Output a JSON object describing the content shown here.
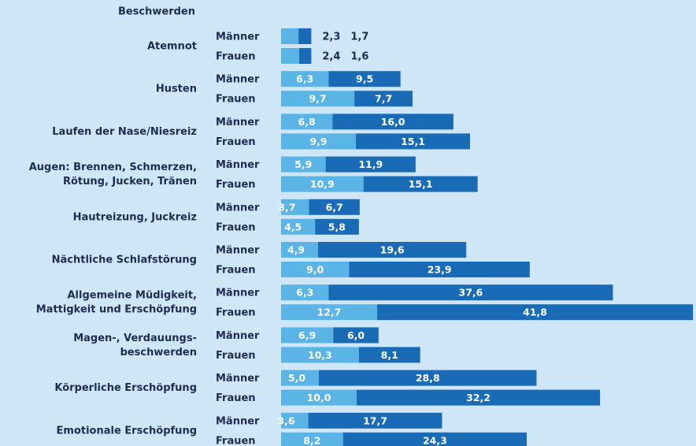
{
  "chart_data": {
    "type": "bar",
    "stacked": true,
    "title": "Beschwerden",
    "categories": [
      "Atemnot",
      "Husten",
      "Laufen der Nase/Niesreiz",
      "Augen: Brennen, Schmerzen,\nRötung, Jucken, Tränen",
      "Hautreizung, Juckreiz",
      "Nächtliche Schlafstörung",
      "Allgemeine Müdigkeit,\nMattigkeit und Erschöpfung",
      "Magen-, Verdauungs-\nbeschwerden",
      "Körperliche Erschöpfung",
      "Emotionale Erschöpfung"
    ],
    "rows": [
      {
        "name": "Männer",
        "series": [
          {
            "color": "#5ab4e5",
            "values": [
              2.3,
              6.3,
              6.8,
              5.9,
              3.7,
              4.9,
              6.3,
              6.9,
              5.0,
              3.6
            ],
            "value_labels": [
              "2,3",
              "6,3",
              "6,8",
              "5,9",
              "3,7",
              "4,9",
              "6,3",
              "6,9",
              "5,0",
              "3,6"
            ]
          },
          {
            "color": "#1a6bb5",
            "values": [
              1.7,
              9.5,
              16.0,
              11.9,
              6.7,
              19.6,
              37.6,
              6.0,
              28.8,
              17.7
            ],
            "value_labels": [
              "1,7",
              "9,5",
              "16,0",
              "11,9",
              "6,7",
              "19,6",
              "37,6",
              "6,0",
              "28,8",
              "17,7"
            ]
          }
        ]
      },
      {
        "name": "Frauen",
        "series": [
          {
            "color": "#5ab4e5",
            "values": [
              2.4,
              9.7,
              9.9,
              10.9,
              4.5,
              9.0,
              12.7,
              10.3,
              10.0,
              8.2
            ],
            "value_labels": [
              "2,4",
              "9,7",
              "9,9",
              "10,9",
              "4,5",
              "9,0",
              "12,7",
              "10,3",
              "10,0",
              "8,2"
            ]
          },
          {
            "color": "#1a6bb5",
            "values": [
              1.6,
              7.7,
              15.1,
              15.1,
              5.8,
              23.9,
              41.8,
              8.1,
              32.2,
              24.3
            ],
            "value_labels": [
              "1,6",
              "7,7",
              "15,1",
              "15,1",
              "5,8",
              "23,9",
              "41,8",
              "8,1",
              "32,2",
              "24,3"
            ]
          }
        ]
      }
    ]
  }
}
